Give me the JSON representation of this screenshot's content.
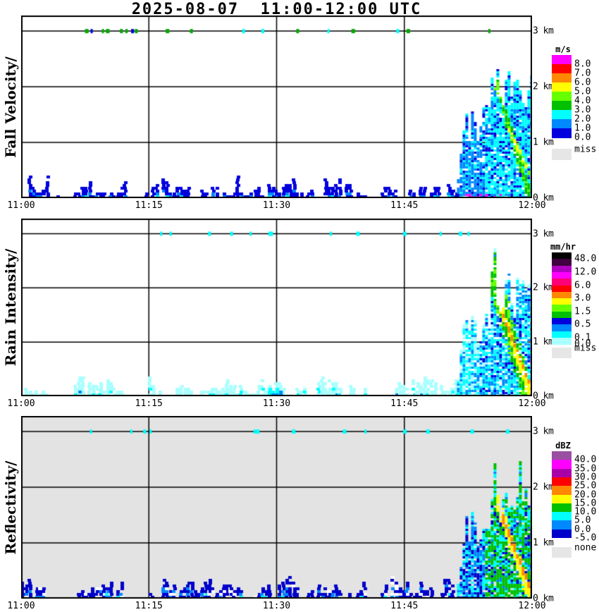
{
  "title": "2025-08-07  11:00-12:00 UTC",
  "chart_data": [
    {
      "id": "fall-velocity",
      "type": "heatmap",
      "ylabel": "Fall Velocity/",
      "x_ticks": [
        "11:00",
        "11:15",
        "11:30",
        "11:45",
        "12:00"
      ],
      "y_labels": [
        {
          "text": "3 km",
          "km": 3
        },
        {
          "text": "2 km",
          "km": 2
        },
        {
          "text": "1 km",
          "km": 1
        },
        {
          "text": "0 km",
          "km": 0
        }
      ],
      "y_top_km": 3.28,
      "background": "#ffffff",
      "grid": true,
      "colorbar": {
        "title": "m/s",
        "bands": [
          "#ff00ff",
          "#ff0000",
          "#ff8800",
          "#ffff00",
          "#66ff00",
          "#00c000",
          "#00ffff",
          "#0088ff",
          "#0000dd"
        ],
        "labels": [
          {
            "text": "8.0",
            "boundary": 1
          },
          {
            "text": "7.0",
            "boundary": 2
          },
          {
            "text": "6.0",
            "boundary": 3
          },
          {
            "text": "5.0",
            "boundary": 4
          },
          {
            "text": "4.0",
            "boundary": 5
          },
          {
            "text": "3.0",
            "boundary": 6
          },
          {
            "text": "2.0",
            "boundary": 7
          },
          {
            "text": "1.0",
            "boundary": 8
          },
          {
            "text": "0.0",
            "boundary": 9
          }
        ],
        "missing": {
          "color": "#e6e6e6",
          "label": "miss"
        }
      },
      "features": [
        {
          "kind": "dots",
          "h_km": 3.0,
          "t": [
            0.1,
            0.95
          ],
          "count": 18,
          "colors": [
            "#00aa00",
            "#00aa00",
            "#00aa00",
            "#0000dd",
            "#0000dd",
            "#00ffff"
          ],
          "seed": 101
        },
        {
          "kind": "layer",
          "t": [
            0.0,
            0.85
          ],
          "h_km": [
            0.12,
            0.42
          ],
          "gaps": [
            [
              0.05,
              0.1
            ],
            [
              0.2,
              0.24
            ]
          ],
          "holes": 0.08,
          "strata": [
            {
              "color": "#0000dd",
              "from": 0,
              "to": 1
            },
            {
              "color": "#0088ff",
              "from": 0.55,
              "to": 1,
              "prob": 0.28
            },
            {
              "color": "#00ffff",
              "from": 0.72,
              "to": 1,
              "prob": 0.22
            },
            {
              "color": "#ff00ff",
              "from": 0.9,
              "to": 1,
              "prob": 0.14
            }
          ],
          "seed": 102
        },
        {
          "kind": "plume",
          "t": [
            0.853,
            1.0
          ],
          "profile": [
            [
              0.853,
              0.3
            ],
            [
              0.865,
              1.2
            ],
            [
              0.878,
              1.35
            ],
            [
              0.89,
              1.0
            ],
            [
              0.9,
              1.45
            ],
            [
              0.912,
              1.35
            ],
            [
              0.923,
              2.3
            ],
            [
              0.933,
              1.75
            ],
            [
              0.947,
              2.15
            ],
            [
              0.96,
              1.8
            ],
            [
              0.973,
              2.05
            ],
            [
              0.988,
              1.75
            ],
            [
              1.0,
              1.85
            ]
          ],
          "zones": [
            {
              "upto": 0.35,
              "colors": [
                [
                  "#0088ff",
                  0.62
                ],
                [
                  "#00ffff",
                  0.2
                ],
                [
                  "#0000dd",
                  0.18
                ]
              ]
            },
            {
              "upto": 1.01,
              "colors": [
                [
                  "#00ffff",
                  0.62
                ],
                [
                  "#0088ff",
                  0.22
                ],
                [
                  "#0000dd",
                  0.16
                ]
              ]
            }
          ],
          "streaks": [
            {
              "from": [
                0.922,
                2.25
              ],
              "to": [
                0.995,
                0.0
              ],
              "width_km": 0.15,
              "colors": [
                "#00c000",
                "#66ff00",
                "#00c000"
              ]
            },
            {
              "from": [
                0.95,
                1.3
              ],
              "to": [
                1.0,
                0.3
              ],
              "width_km": 0.06,
              "colors": [
                "#66ff00",
                "#ffff00"
              ]
            }
          ],
          "bottom": {
            "color": "#ff00ff",
            "h_km": 0.09,
            "t": [
              0.86,
              0.94
            ],
            "prob": 0.3
          },
          "holes": 0.1,
          "seed": 103
        }
      ]
    },
    {
      "id": "rain-intensity",
      "type": "heatmap",
      "ylabel": "Rain Intensity/",
      "x_ticks": [
        "11:00",
        "11:15",
        "11:30",
        "11:45",
        "12:00"
      ],
      "y_labels": [
        {
          "text": "3 km",
          "km": 3
        },
        {
          "text": "2 km",
          "km": 2
        },
        {
          "text": "1 km",
          "km": 1
        },
        {
          "text": "0 km",
          "km": 0
        }
      ],
      "y_top_km": 3.28,
      "background": "#ffffff",
      "grid": true,
      "colorbar": {
        "title": "mm/hr",
        "bands": [
          "#000000",
          "#41003f",
          "#b000c0",
          "#ff00ff",
          "#ff0077",
          "#ff0000",
          "#ff8800",
          "#ffff00",
          "#66ff00",
          "#00c000",
          "#0000dd",
          "#0088ff",
          "#00ffff",
          "#aaffff"
        ],
        "labels": [
          {
            "text": "48.0",
            "boundary": 1
          },
          {
            "text": "12.0",
            "boundary": 3
          },
          {
            "text": "6.0",
            "boundary": 5
          },
          {
            "text": "3.0",
            "boundary": 7
          },
          {
            "text": "1.5",
            "boundary": 9
          },
          {
            "text": "0.5",
            "boundary": 11
          },
          {
            "text": "0.1",
            "boundary": 13
          },
          {
            "text": "0.0",
            "boundary": 14
          }
        ],
        "missing": {
          "color": "#e6e6e6",
          "label": "miss"
        }
      },
      "features": [
        {
          "kind": "dots",
          "h_km": 3.0,
          "t": [
            0.12,
            0.95
          ],
          "count": 13,
          "colors": [
            "#00ffff"
          ],
          "seed": 201
        },
        {
          "kind": "layer",
          "t": [
            0.0,
            0.85
          ],
          "h_km": [
            0.08,
            0.38
          ],
          "gaps": [
            [
              0.05,
              0.1
            ],
            [
              0.2,
              0.24
            ]
          ],
          "holes": 0.1,
          "strata": [
            {
              "color": "#aaffff",
              "from": 0,
              "to": 1
            },
            {
              "color": "#00ffff",
              "from": 0.45,
              "to": 1,
              "prob": 0.18
            },
            {
              "color": "#0088ff",
              "from": 0.72,
              "to": 1,
              "prob": 0.04
            }
          ],
          "seed": 202
        },
        {
          "kind": "layer",
          "t": [
            0.483,
            0.508
          ],
          "h_km": [
            0.1,
            0.2
          ],
          "holes": 0.15,
          "strata": [
            {
              "color": "#00ffff",
              "from": 0,
              "to": 1
            },
            {
              "color": "#0088ff",
              "from": 0.4,
              "to": 1,
              "prob": 0.5
            }
          ],
          "seed": 205
        },
        {
          "kind": "plume",
          "t": [
            0.853,
            1.0
          ],
          "profile": [
            [
              0.853,
              0.3
            ],
            [
              0.865,
              1.2
            ],
            [
              0.878,
              1.35
            ],
            [
              0.89,
              1.0
            ],
            [
              0.9,
              1.45
            ],
            [
              0.912,
              1.35
            ],
            [
              0.923,
              2.3
            ],
            [
              0.933,
              1.75
            ],
            [
              0.947,
              2.15
            ],
            [
              0.96,
              1.8
            ],
            [
              0.973,
              2.05
            ],
            [
              0.988,
              1.75
            ],
            [
              1.0,
              1.85
            ]
          ],
          "zones": [
            {
              "upto": 0.3,
              "colors": [
                [
                  "#00ffff",
                  0.45
                ],
                [
                  "#aaffff",
                  0.3
                ],
                [
                  "#0088ff",
                  0.25
                ]
              ]
            },
            {
              "upto": 1.01,
              "colors": [
                [
                  "#00ffff",
                  0.4
                ],
                [
                  "#0088ff",
                  0.3
                ],
                [
                  "#aaffff",
                  0.15
                ],
                [
                  "#0000dd",
                  0.15
                ]
              ]
            }
          ],
          "edge": {
            "color": "#aaffff",
            "cells": 2,
            "prob": 0.75
          },
          "streaks": [
            {
              "from": [
                0.918,
                2.4
              ],
              "to": [
                0.99,
                0.0
              ],
              "width_km": 0.42,
              "colors": [
                "#00c000",
                "#00c000",
                "#66ff00"
              ]
            },
            {
              "from": [
                0.925,
                2.0
              ],
              "to": [
                0.995,
                0.0
              ],
              "width_km": 0.12,
              "colors": [
                "#ffff00"
              ]
            },
            {
              "from": [
                0.93,
                1.8
              ],
              "to": [
                0.998,
                0.1
              ],
              "width_km": 0.05,
              "colors": [
                "#ff8800"
              ]
            }
          ],
          "holes": 0.1,
          "seed": 203
        }
      ]
    },
    {
      "id": "reflectivity",
      "type": "heatmap",
      "ylabel": "Reflectivity/",
      "x_ticks": [
        "11:00",
        "11:15",
        "11:30",
        "11:45",
        "12:00"
      ],
      "y_labels": [
        {
          "text": "3 km",
          "km": 3
        },
        {
          "text": "2 km",
          "km": 2
        },
        {
          "text": "1 km",
          "km": 1
        },
        {
          "text": "0 km",
          "km": 0
        }
      ],
      "y_top_km": 3.28,
      "background": "#e3e3e3",
      "grid": true,
      "colorbar": {
        "title": "dBZ",
        "bands": [
          "#9950a0",
          "#ff00ff",
          "#aa00aa",
          "#ff0000",
          "#ff8800",
          "#ffff00",
          "#00c000",
          "#00ffff",
          "#0088ff",
          "#0000cc"
        ],
        "labels": [
          {
            "text": "40.0",
            "boundary": 1
          },
          {
            "text": "35.0",
            "boundary": 2
          },
          {
            "text": "30.0",
            "boundary": 3
          },
          {
            "text": "25.0",
            "boundary": 4
          },
          {
            "text": "20.0",
            "boundary": 5
          },
          {
            "text": "15.0",
            "boundary": 6
          },
          {
            "text": "10.0",
            "boundary": 7
          },
          {
            "text": "5.0",
            "boundary": 8
          },
          {
            "text": "0.0",
            "boundary": 9
          },
          {
            "text": "-5.0",
            "boundary": 10
          }
        ],
        "missing": {
          "color": "#e6e6e6",
          "label": "none"
        }
      },
      "features": [
        {
          "kind": "dots",
          "h_km": 3.0,
          "t": [
            0.12,
            0.95
          ],
          "count": 13,
          "colors": [
            "#00ffff"
          ],
          "seed": 301
        },
        {
          "kind": "layer",
          "t": [
            0.0,
            0.85
          ],
          "h_km": [
            0.12,
            0.45
          ],
          "gaps": [
            [
              0.05,
              0.1
            ],
            [
              0.2,
              0.24
            ]
          ],
          "holes": 0.07,
          "strata": [
            {
              "color": "#0000cc",
              "from": 0,
              "to": 1
            },
            {
              "color": "#0088ff",
              "from": 0.35,
              "to": 1,
              "prob": 0.22
            },
            {
              "color": "#00ffff",
              "from": 0.55,
              "to": 1,
              "prob": 0.12
            },
            {
              "color": "#ffffff",
              "from": 0,
              "to": 1,
              "prob": 0.1
            }
          ],
          "seed": 302
        },
        {
          "kind": "plume",
          "t": [
            0.853,
            1.0
          ],
          "profile": [
            [
              0.853,
              0.3
            ],
            [
              0.865,
              1.2
            ],
            [
              0.878,
              1.35
            ],
            [
              0.89,
              1.0
            ],
            [
              0.9,
              1.45
            ],
            [
              0.912,
              1.35
            ],
            [
              0.923,
              2.3
            ],
            [
              0.933,
              1.75
            ],
            [
              0.947,
              2.15
            ],
            [
              0.96,
              1.8
            ],
            [
              0.973,
              2.05
            ],
            [
              0.988,
              1.75
            ],
            [
              1.0,
              1.85
            ]
          ],
          "zones": [
            {
              "upto": 0.35,
              "colors": [
                [
                  "#0088ff",
                  0.4
                ],
                [
                  "#00ffff",
                  0.3
                ],
                [
                  "#0000cc",
                  0.3
                ]
              ]
            },
            {
              "upto": 1.01,
              "colors": [
                [
                  "#00c000",
                  0.55
                ],
                [
                  "#00ffff",
                  0.25
                ],
                [
                  "#0088ff",
                  0.1
                ],
                [
                  "#0000cc",
                  0.1
                ]
              ]
            }
          ],
          "streaks": [
            {
              "from": [
                0.925,
                1.9
              ],
              "to": [
                0.995,
                0.0
              ],
              "width_km": 0.18,
              "colors": [
                "#ffff00"
              ]
            },
            {
              "from": [
                0.935,
                1.6
              ],
              "to": [
                1.0,
                0.05
              ],
              "width_km": 0.07,
              "colors": [
                "#ff8800"
              ]
            }
          ],
          "holes": 0.08,
          "seed": 303
        }
      ]
    }
  ]
}
